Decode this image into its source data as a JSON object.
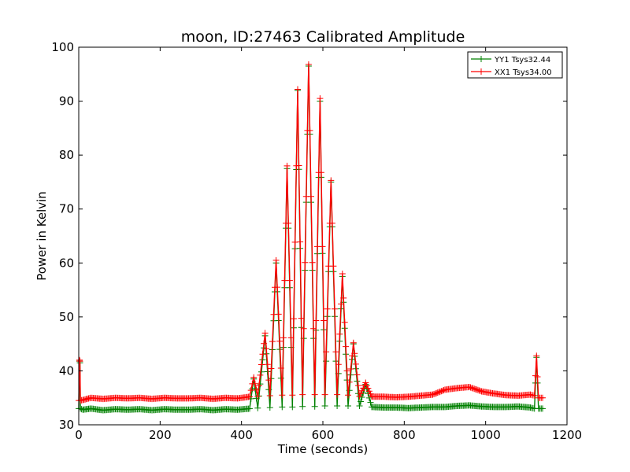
{
  "chart_data": {
    "type": "line",
    "title": "moon, ID:27463 Calibrated Amplitude",
    "xlabel": "Time (seconds)",
    "ylabel": "Power in Kelvin",
    "xlim": [
      0,
      1200
    ],
    "ylim": [
      30,
      100
    ],
    "xticks": [
      0,
      200,
      400,
      600,
      800,
      1000,
      1200
    ],
    "yticks": [
      30,
      40,
      50,
      60,
      70,
      80,
      90,
      100
    ],
    "grid": false,
    "legend_position": "top-right",
    "series": [
      {
        "name": "YY1 Tsys32.44",
        "color": "#008000",
        "marker": "+",
        "x": [
          0,
          2,
          3,
          4,
          10,
          30,
          60,
          90,
          120,
          150,
          180,
          210,
          240,
          270,
          300,
          330,
          360,
          390,
          420,
          430,
          440,
          458,
          470,
          485,
          500,
          512,
          525,
          538,
          550,
          565,
          580,
          593,
          605,
          620,
          635,
          648,
          662,
          675,
          690,
          705,
          720,
          750,
          780,
          810,
          840,
          870,
          900,
          930,
          960,
          990,
          1020,
          1050,
          1080,
          1110,
          1120,
          1125,
          1130,
          1140
        ],
        "y": [
          33.0,
          41.8,
          41.5,
          33.0,
          32.8,
          33.0,
          32.7,
          32.9,
          32.8,
          32.9,
          32.7,
          32.9,
          32.8,
          32.8,
          32.9,
          32.7,
          32.9,
          32.8,
          33.0,
          38.5,
          33.1,
          46.5,
          33.2,
          60.0,
          33.3,
          77.5,
          33.3,
          92.0,
          33.4,
          96.5,
          33.4,
          90.0,
          33.5,
          75.0,
          33.5,
          57.5,
          33.5,
          45.0,
          33.5,
          37.5,
          33.3,
          33.2,
          33.2,
          33.1,
          33.2,
          33.3,
          33.3,
          33.5,
          33.6,
          33.4,
          33.3,
          33.3,
          33.4,
          33.2,
          33.0,
          42.5,
          33.0,
          33.0
        ]
      },
      {
        "name": "XX1 Tsys34.00",
        "color": "#ff0000",
        "marker": "+",
        "x": [
          0,
          2,
          3,
          4,
          10,
          30,
          60,
          90,
          120,
          150,
          180,
          210,
          240,
          270,
          300,
          330,
          360,
          390,
          420,
          430,
          440,
          458,
          470,
          485,
          500,
          512,
          525,
          538,
          550,
          565,
          580,
          593,
          605,
          620,
          635,
          648,
          662,
          675,
          690,
          705,
          720,
          750,
          780,
          810,
          840,
          870,
          900,
          930,
          960,
          990,
          1020,
          1050,
          1080,
          1110,
          1120,
          1125,
          1130,
          1140
        ],
        "y": [
          34.5,
          42.0,
          41.8,
          34.5,
          34.6,
          35.0,
          34.8,
          35.0,
          34.9,
          35.0,
          34.8,
          35.0,
          34.9,
          34.9,
          35.0,
          34.8,
          35.0,
          34.9,
          35.2,
          38.8,
          35.3,
          47.0,
          35.4,
          60.5,
          35.5,
          78.0,
          35.5,
          92.2,
          35.6,
          96.8,
          35.6,
          90.5,
          35.6,
          75.3,
          35.6,
          58.0,
          35.5,
          45.2,
          35.3,
          37.8,
          35.2,
          35.2,
          35.1,
          35.2,
          35.4,
          35.6,
          36.5,
          36.8,
          37.0,
          36.2,
          35.8,
          35.5,
          35.4,
          35.6,
          35.4,
          42.8,
          35.0,
          35.0
        ]
      }
    ]
  }
}
